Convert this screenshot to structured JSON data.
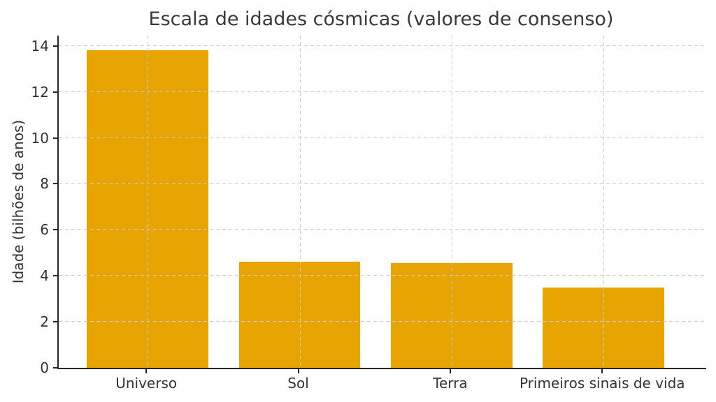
{
  "chart_data": {
    "type": "bar",
    "title": "Escala de idades cósmicas (valores de consenso)",
    "xlabel": "",
    "ylabel": "Idade (bilhões de anos)",
    "categories": [
      "Universo",
      "Sol",
      "Terra",
      "Primeiros sinais de vida"
    ],
    "values": [
      13.8,
      4.6,
      4.54,
      3.5
    ],
    "ylim": [
      0,
      14.45
    ],
    "yticks": [
      0,
      2,
      4,
      6,
      8,
      10,
      12,
      14
    ],
    "bar_color": "#E8A402",
    "grid": "on",
    "grid_color": "#cccccc",
    "grid_style": "dashed",
    "legend_position": "none",
    "spine_color": "#262626",
    "text_color": "#333333"
  }
}
